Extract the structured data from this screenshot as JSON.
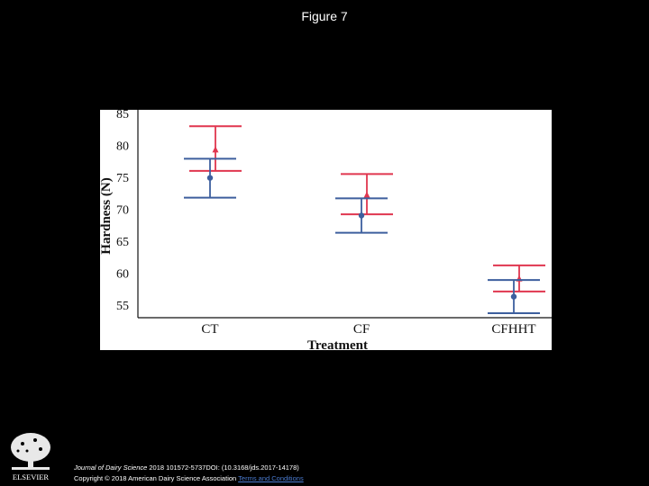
{
  "slide": {
    "title": "Figure 7",
    "journal": "Journal of Dairy Science",
    "citation_rest": " 2018 101572-5737DOI: (10.3168/jds.2017-14178)",
    "copyright": "Copyright © 2018 American Dairy Science Association",
    "terms_link": "Terms and Conditions",
    "publisher_logo": "ELSEVIER"
  },
  "colors": {
    "red_series": "#e0364f",
    "blue_series": "#3d5f9e",
    "axis": "#000000"
  },
  "chart_data": {
    "type": "errorbar",
    "title": "",
    "xlabel": "Treatment",
    "ylabel": "Hardness (N)",
    "categories": [
      "CT",
      "CF",
      "CFHHT"
    ],
    "ylim": [
      53,
      85
    ],
    "yticks": [
      55,
      60,
      65,
      70,
      75,
      80,
      85
    ],
    "grid": false,
    "series": [
      {
        "color": "#e0364f",
        "marker": "triangle",
        "values": [
          79.3,
          72.2,
          59.1
        ],
        "lower": [
          76.0,
          69.2,
          57.1
        ],
        "upper": [
          83.0,
          75.5,
          61.2
        ]
      },
      {
        "color": "#3d5f9e",
        "marker": "circle",
        "values": [
          74.9,
          69.0,
          56.3
        ],
        "lower": [
          71.8,
          66.3,
          53.7
        ],
        "upper": [
          77.9,
          71.7,
          58.9
        ]
      }
    ]
  }
}
